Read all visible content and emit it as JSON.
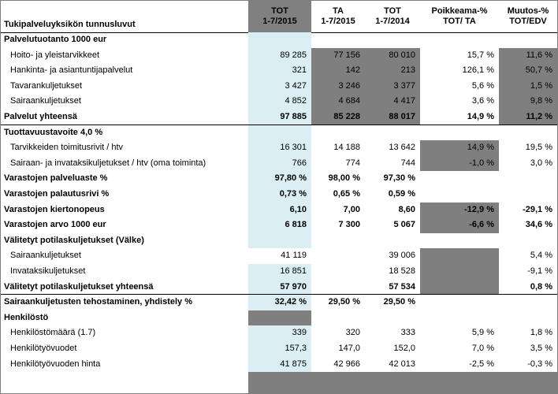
{
  "header": {
    "title": "Tukipalveluyksikön tunnusluvut",
    "columns": [
      {
        "line1": "TOT",
        "line2": "1-7/2015"
      },
      {
        "line1": "TA",
        "line2": "1-7/2015"
      },
      {
        "line1": "TOT",
        "line2": "1-7/2014"
      },
      {
        "line1": "Poikkeama-%",
        "line2": "TOT/ TA"
      },
      {
        "line1": "Muutos-%",
        "line2": "TOT/EDV"
      }
    ]
  },
  "rows": [
    {
      "label": "Palvelutuotanto 1000 eur",
      "bold": true,
      "indent": false,
      "cells": [
        "",
        "",
        "",
        "",
        ""
      ]
    },
    {
      "label": "Hoito- ja yleistarvikkeet",
      "bold": false,
      "indent": true,
      "cells": [
        "89 285",
        "77 156",
        "80 010",
        "15,7 %",
        "11,6 %"
      ]
    },
    {
      "label": "Hankinta- ja asiantuntijapalvelut",
      "bold": false,
      "indent": true,
      "cells": [
        "321",
        "142",
        "213",
        "126,1 %",
        "50,7 %"
      ]
    },
    {
      "label": "Tavarankuljetukset",
      "bold": false,
      "indent": true,
      "cells": [
        "3 427",
        "3 246",
        "3 377",
        "5,6 %",
        "1,5 %"
      ]
    },
    {
      "label": "Sairaankuljetukset",
      "bold": false,
      "indent": true,
      "cells": [
        "4 852",
        "4 684",
        "4 417",
        "3,6 %",
        "9,8 %"
      ]
    },
    {
      "label": "Palvelut yhteensä",
      "bold": true,
      "indent": false,
      "cells": [
        "97 885",
        "85 228",
        "88 017",
        "14,9 %",
        "11,2 %"
      ]
    },
    {
      "label": "Tuottavuustavoite  4,0 %",
      "bold": true,
      "indent": false,
      "cells": [
        "",
        "",
        "",
        "",
        ""
      ]
    },
    {
      "label": "Tarvikkeiden toimitusrivit / htv",
      "bold": false,
      "indent": true,
      "cells": [
        "16 301",
        "14 188",
        "13 642",
        "14,9 %",
        "19,5 %"
      ]
    },
    {
      "label": "Sairaan- ja invataksikuljetukset / htv (oma toiminta)",
      "bold": false,
      "indent": true,
      "cells": [
        "766",
        "774",
        "744",
        "-1,0 %",
        "3,0 %"
      ]
    },
    {
      "label": "Varastojen palveluaste %",
      "bold": true,
      "indent": false,
      "cells": [
        "97,80 %",
        "98,00 %",
        "97,30 %",
        "",
        ""
      ]
    },
    {
      "label": "Varastojen palautusrivi %",
      "bold": true,
      "indent": false,
      "cells": [
        "0,73 %",
        "0,65 %",
        "0,59 %",
        "",
        ""
      ]
    },
    {
      "label": "Varastojen kiertonopeus",
      "bold": true,
      "indent": false,
      "cells": [
        "6,10",
        "7,00",
        "8,60",
        "-12,9 %",
        "-29,1 %"
      ]
    },
    {
      "label": "Varastojen arvo 1000 eur",
      "bold": true,
      "indent": false,
      "cells": [
        "6 818",
        "7 300",
        "5 067",
        "-6,6 %",
        "34,6 %"
      ]
    },
    {
      "label": "Välitetyt potilaskuljetukset (Välke)",
      "bold": true,
      "indent": false,
      "cells": [
        "",
        "",
        "",
        "",
        ""
      ]
    },
    {
      "label": "Sairaankuljetukset",
      "bold": false,
      "indent": true,
      "cells": [
        "41 119",
        "",
        "39 006",
        "",
        "5,4 %"
      ]
    },
    {
      "label": "Invataksikuljetukset",
      "bold": false,
      "indent": true,
      "cells": [
        "16 851",
        "",
        "18 528",
        "",
        "-9,1 %"
      ]
    },
    {
      "label": "Välitetyt potilaskuljetukset yhteensä",
      "bold": true,
      "indent": false,
      "cells": [
        "57 970",
        "",
        "57 534",
        "",
        "0,8 %"
      ]
    },
    {
      "label": "Sairaankuljetusten tehostaminen, yhdistely %",
      "bold": true,
      "indent": false,
      "cells": [
        "32,42 %",
        "29,50 %",
        "29,50 %",
        "",
        ""
      ]
    },
    {
      "label": "Henkilöstö",
      "bold": true,
      "indent": false,
      "cells": [
        "",
        "",
        "",
        "",
        ""
      ]
    },
    {
      "label": "Henkilöstömäärä (1.7)",
      "bold": false,
      "indent": true,
      "cells": [
        "339",
        "320",
        "333",
        "5,9 %",
        "1,8 %"
      ]
    },
    {
      "label": "Henkilötyövuodet",
      "bold": false,
      "indent": true,
      "cells": [
        "157,3",
        "147,0",
        "152,0",
        "7,0 %",
        "3,5 %"
      ]
    },
    {
      "label": "Henkilötyövuoden hinta",
      "bold": false,
      "indent": true,
      "cells": [
        "41 875",
        "42 966",
        "42 013",
        "-2,5 %",
        "-0,3 %"
      ]
    }
  ]
}
